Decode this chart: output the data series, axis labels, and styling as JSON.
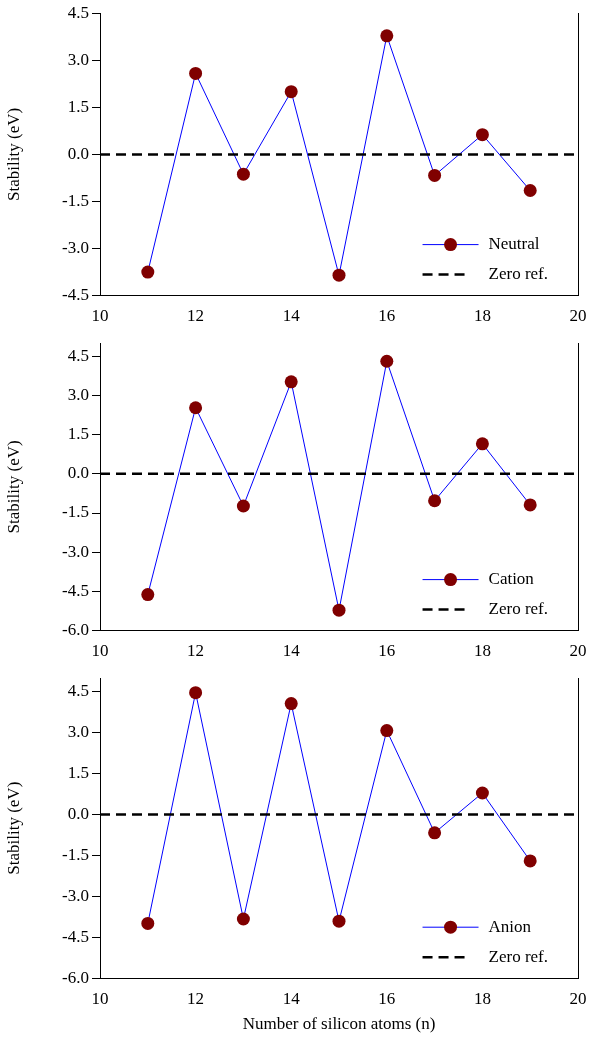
{
  "chart_data": [
    {
      "type": "line",
      "ylabel": "Stability (eV)",
      "x": [
        11,
        12,
        13,
        14,
        15,
        16,
        17,
        18,
        19
      ],
      "xlim": [
        10,
        20
      ],
      "xticks": [
        10,
        12,
        14,
        16,
        18,
        20
      ],
      "ylim": [
        -4.5,
        4.5
      ],
      "yticks": [
        -4.5,
        {
          "value": -3,
          "label": "-3.0"
        },
        {
          "value": -1.5,
          "label": "-1.5"
        },
        {
          "value": 0,
          "label": "0.0"
        },
        {
          "value": 1.5,
          "label": "1.5"
        },
        {
          "value": 3,
          "label": "3.0"
        },
        {
          "value": 4.5,
          "label": "4.5"
        }
      ],
      "series": [
        {
          "name": "Neutral",
          "color": "#0000ff",
          "colors": [
            "#800000",
            "#800000",
            "#800000",
            "#800000",
            "#800000",
            "#800000",
            "#800000",
            "#800000",
            "#800000"
          ],
          "values": [
            -3.75,
            2.58,
            -0.63,
            2.0,
            -3.85,
            3.78,
            -0.67,
            0.63,
            -1.15
          ]
        }
      ],
      "ref_lines": [
        {
          "axis": "y",
          "value": 0,
          "label": "Zero ref.",
          "color": "#000000",
          "line_style": "dashed"
        }
      ],
      "marker": "circle",
      "grid": false,
      "legend": "bottom right"
    },
    {
      "type": "line",
      "ylabel": "Stability (eV)",
      "x": [
        11,
        12,
        13,
        14,
        15,
        16,
        17,
        18,
        19
      ],
      "xlim": [
        10,
        20
      ],
      "xticks": [
        10,
        12,
        14,
        16,
        18,
        20
      ],
      "ylim": [
        -6,
        5
      ],
      "yticks": [
        {
          "value": -6,
          "label": "-6.0"
        },
        {
          "value": -4.5,
          "label": "-4.5"
        },
        {
          "value": -3,
          "label": "-3.0"
        },
        {
          "value": -1.5,
          "label": "-1.5"
        },
        {
          "value": 0,
          "label": "0.0"
        },
        {
          "value": 1.5,
          "label": "1.5"
        },
        {
          "value": 3,
          "label": "3.0"
        },
        {
          "value": 4.5,
          "label": "4.5"
        }
      ],
      "series": [
        {
          "name": "Cation",
          "color": "#0000ff",
          "colors": [
            "#800000",
            "#800000",
            "#800000",
            "#800000",
            "#800000",
            "#800000",
            "#800000",
            "#800000",
            "#800000"
          ],
          "values": [
            -4.62,
            2.53,
            -1.23,
            3.52,
            -5.22,
            4.31,
            -1.03,
            1.15,
            -1.19
          ]
        }
      ],
      "ref_lines": [
        {
          "axis": "y",
          "value": 0,
          "label": "Zero ref.",
          "color": "#000000",
          "line_style": "dashed"
        }
      ],
      "marker": "circle",
      "grid": false,
      "legend": "bottom right"
    },
    {
      "type": "line",
      "xlabel": "Number of silicon atoms (n)",
      "ylabel": "Stability (eV)",
      "x": [
        11,
        12,
        13,
        14,
        15,
        16,
        17,
        18,
        19
      ],
      "xlim": [
        10,
        20
      ],
      "xticks": [
        10,
        12,
        14,
        16,
        18,
        20
      ],
      "ylim": [
        -6,
        5
      ],
      "yticks": [
        {
          "value": -6,
          "label": "-6.0"
        },
        {
          "value": -4.5,
          "label": "-4.5"
        },
        {
          "value": -3,
          "label": "-3.0"
        },
        {
          "value": -1.5,
          "label": "-1.5"
        },
        {
          "value": 0,
          "label": "0.0"
        },
        {
          "value": 1.5,
          "label": "1.5"
        },
        {
          "value": 3,
          "label": "3.0"
        },
        {
          "value": 4.5,
          "label": "4.5"
        }
      ],
      "series": [
        {
          "name": "Anion",
          "color": "#0000ff",
          "colors": [
            "#800000",
            "#800000",
            "#800000",
            "#800000",
            "#800000",
            "#800000",
            "#800000",
            "#800000",
            "#800000"
          ],
          "values": [
            -3.99,
            4.47,
            -3.83,
            4.07,
            -3.91,
            3.08,
            -0.67,
            0.79,
            -1.7
          ]
        }
      ],
      "ref_lines": [
        {
          "axis": "y",
          "value": 0,
          "label": "Zero ref.",
          "color": "#000000",
          "line_style": "dashed"
        }
      ],
      "marker": "circle",
      "grid": false,
      "legend": "bottom right"
    }
  ]
}
